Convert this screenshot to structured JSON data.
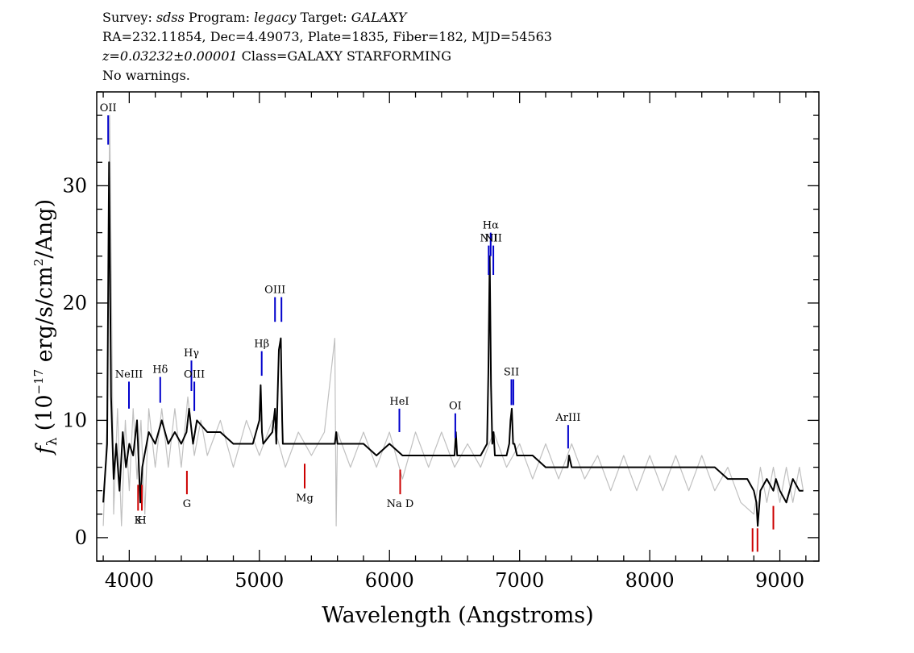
{
  "header": {
    "line1": {
      "survey_label": "Survey:",
      "survey": "sdss",
      "program_label": "Program:",
      "program": "legacy",
      "target_label": "Target:",
      "target": "GALAXY"
    },
    "line2": "RA=232.11854, Dec=4.49073, Plate=1835, Fiber=182, MJD=54563",
    "line3": {
      "redshift": "z=0.03232±0.00001",
      "class": "Class=GALAXY STARFORMING"
    },
    "line4": "No warnings."
  },
  "chart_data": {
    "type": "line",
    "xlabel": "Wavelength (Angstroms)",
    "ylabel": "f_λ (10^-17 erg/s/cm^2/Ang)",
    "ylabel_parts": {
      "f": "f",
      "sub": "λ",
      "pre": "(10",
      "exp1": "−17",
      "mid": " erg/s/cm",
      "exp2": "2",
      "post": "/Ang)"
    },
    "xlim": [
      3750,
      9300
    ],
    "ylim": [
      -2,
      38
    ],
    "x_ticks": [
      4000,
      5000,
      6000,
      7000,
      8000,
      9000
    ],
    "y_ticks": [
      0,
      10,
      20,
      30
    ],
    "grid": false,
    "series": [
      {
        "role": "model",
        "color": "#000000",
        "x": [
          3800,
          3830,
          3845,
          3860,
          3880,
          3900,
          3925,
          3950,
          3975,
          4000,
          4030,
          4060,
          4085,
          4100,
          4150,
          4200,
          4250,
          4300,
          4350,
          4400,
          4440,
          4460,
          4490,
          4520,
          4600,
          4700,
          4800,
          4900,
          4950,
          5000,
          5010,
          5020,
          5030,
          5100,
          5120,
          5130,
          5150,
          5165,
          5175,
          5180,
          5200,
          5300,
          5400,
          5500,
          5580,
          5590,
          5600,
          5700,
          5800,
          5900,
          6000,
          6100,
          6200,
          6300,
          6400,
          6500,
          6510,
          6520,
          6600,
          6700,
          6750,
          6760,
          6770,
          6780,
          6790,
          6800,
          6810,
          6850,
          6900,
          6920,
          6930,
          6940,
          6950,
          6960,
          6980,
          7000,
          7100,
          7200,
          7300,
          7370,
          7380,
          7400,
          7500,
          7600,
          7700,
          7800,
          7900,
          8000,
          8100,
          8200,
          8300,
          8400,
          8500,
          8600,
          8700,
          8750,
          8800,
          8820,
          8830,
          8850,
          8900,
          8950,
          8970,
          9000,
          9050,
          9100,
          9150,
          9180
        ],
        "y": [
          3,
          8,
          32,
          12,
          5,
          8,
          4,
          9,
          6,
          8,
          7,
          10,
          3,
          6,
          9,
          8,
          10,
          8,
          9,
          8,
          9,
          11,
          8,
          10,
          9,
          9,
          8,
          8,
          8,
          10,
          13,
          9,
          8,
          9,
          11,
          8,
          16,
          17,
          10,
          8,
          8,
          8,
          8,
          8,
          8,
          9,
          8,
          8,
          8,
          7,
          8,
          7,
          7,
          7,
          7,
          7,
          9,
          7,
          7,
          7,
          8,
          14,
          24,
          13,
          8,
          9,
          7,
          7,
          7,
          8,
          10,
          11,
          8,
          8,
          7,
          7,
          7,
          6,
          6,
          6,
          7,
          6,
          6,
          6,
          6,
          6,
          6,
          6,
          6,
          6,
          6,
          6,
          6,
          5,
          5,
          5,
          4,
          3,
          1,
          4,
          5,
          4,
          5,
          4,
          3,
          5,
          4,
          4
        ]
      },
      {
        "role": "flux-noise",
        "color": "#c0c0c0",
        "x": [
          3800,
          3830,
          3850,
          3880,
          3910,
          3940,
          3970,
          4000,
          4030,
          4060,
          4090,
          4120,
          4150,
          4200,
          4250,
          4300,
          4350,
          4400,
          4450,
          4500,
          4550,
          4600,
          4700,
          4800,
          4900,
          5000,
          5100,
          5200,
          5300,
          5400,
          5500,
          5580,
          5590,
          5600,
          5700,
          5800,
          5900,
          6000,
          6100,
          6200,
          6300,
          6400,
          6500,
          6600,
          6700,
          6800,
          6900,
          7000,
          7100,
          7200,
          7300,
          7400,
          7500,
          7600,
          7700,
          7800,
          7900,
          8000,
          8100,
          8200,
          8300,
          8400,
          8500,
          8600,
          8700,
          8800,
          8850,
          8900,
          8950,
          9000,
          9050,
          9100,
          9150,
          9180
        ],
        "y": [
          1,
          10,
          36,
          2,
          11,
          1,
          10,
          4,
          11,
          5,
          10,
          2,
          11,
          6,
          11,
          6,
          11,
          6,
          12,
          7,
          10,
          7,
          10,
          6,
          10,
          7,
          10,
          6,
          9,
          7,
          9,
          17,
          1,
          9,
          6,
          9,
          6,
          9,
          5,
          9,
          6,
          9,
          6,
          8,
          6,
          9,
          6,
          8,
          5,
          8,
          5,
          8,
          5,
          7,
          4,
          7,
          4,
          7,
          4,
          7,
          4,
          7,
          4,
          6,
          3,
          2,
          6,
          3,
          6,
          3,
          6,
          3,
          6,
          4
        ]
      }
    ],
    "emission_lines": [
      {
        "label": "OII",
        "x": 3838,
        "y_low": 33.5,
        "y_high": 36
      },
      {
        "label": "NeIII",
        "x": 3998,
        "y_low": 11,
        "y_high": 13.3
      },
      {
        "label": "Hδ",
        "x": 4238,
        "y_low": 11.5,
        "y_high": 13.7
      },
      {
        "label": "Hγ",
        "x": 4478,
        "y_low": 12.5,
        "y_high": 15.1
      },
      {
        "label": "OIII",
        "x": 4500,
        "y_low": 10.8,
        "y_high": 13.3
      },
      {
        "label": "Hβ",
        "x": 5018,
        "y_low": 13.8,
        "y_high": 15.9
      },
      {
        "label": "OIII",
        "x": 5120,
        "y_low": 18.4,
        "y_high": 20.5
      },
      {
        "label": "",
        "x": 5170,
        "y_low": 18.4,
        "y_high": 20.5
      },
      {
        "label": "HeI",
        "x": 6076,
        "y_low": 9.0,
        "y_high": 11.0
      },
      {
        "label": "OI",
        "x": 6506,
        "y_low": 8.5,
        "y_high": 10.6
      },
      {
        "label": "NII",
        "x": 6762,
        "y_low": 22.4,
        "y_high": 24.9
      },
      {
        "label": "Hα",
        "x": 6778,
        "y_low": 24,
        "y_high": 26
      },
      {
        "label": "NII",
        "x": 6798,
        "y_low": 22.4,
        "y_high": 24.9
      },
      {
        "label": "SII",
        "x": 6937,
        "y_low": 11.3,
        "y_high": 13.5
      },
      {
        "label": "",
        "x": 6952,
        "y_low": 11.3,
        "y_high": 13.5
      },
      {
        "label": "ArIII",
        "x": 7373,
        "y_low": 7.6,
        "y_high": 9.6
      }
    ],
    "absorption_lines": [
      {
        "label": "K",
        "x": 4068,
        "y_low": 2.3,
        "y_high": 4.5
      },
      {
        "label": "H",
        "x": 4097,
        "y_low": 2.3,
        "y_high": 4.5
      },
      {
        "label": "G",
        "x": 4443,
        "y_low": 3.7,
        "y_high": 5.7
      },
      {
        "label": "Mg",
        "x": 5348,
        "y_low": 4.2,
        "y_high": 6.3
      },
      {
        "label": "Na D",
        "x": 6082,
        "y_low": 3.7,
        "y_high": 5.8
      },
      {
        "label": "",
        "x": 8790,
        "y_low": -1.2,
        "y_high": 0.8
      },
      {
        "label": "",
        "x": 8828,
        "y_low": -1.2,
        "y_high": 0.8
      },
      {
        "label": "",
        "x": 8950,
        "y_low": 0.7,
        "y_high": 2.7
      }
    ],
    "colors": {
      "emission": "#0000cc",
      "absorption": "#cc0000",
      "noise": "#c0c0c0",
      "model": "#000000"
    }
  }
}
